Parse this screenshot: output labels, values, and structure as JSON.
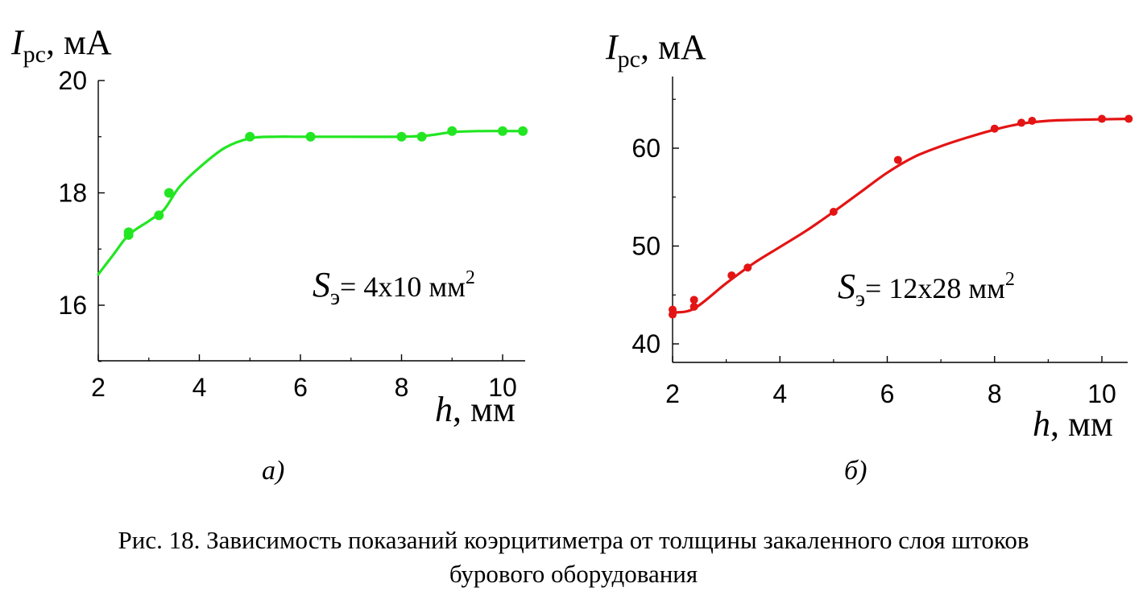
{
  "chart_data": [
    {
      "type": "line",
      "panel_label": "а)",
      "ylabel": {
        "var": "I",
        "sub": "рс",
        "unit": ", мА"
      },
      "xlabel": {
        "var": "h",
        "unit": ", мм"
      },
      "xlim": [
        2,
        10.5
      ],
      "ylim": [
        15,
        20
      ],
      "xticks": [
        "2",
        "4",
        "6",
        "8",
        "10"
      ],
      "yticks": [
        "16",
        "18",
        "20"
      ],
      "annotation": {
        "var": "S",
        "sub": "э",
        "text": "= 4х10 мм",
        "sup": "2"
      },
      "color": "#22e622",
      "series": [
        {
          "points": [
            [
              2.6,
              17.3
            ],
            [
              2.6,
              17.25
            ],
            [
              3.2,
              17.6
            ],
            [
              3.4,
              18.0
            ],
            [
              5.0,
              19.0
            ],
            [
              6.2,
              19.0
            ],
            [
              8.0,
              19.0
            ],
            [
              8.4,
              19.0
            ],
            [
              9.0,
              19.1
            ],
            [
              10.0,
              19.1
            ],
            [
              10.4,
              19.1
            ]
          ],
          "curve": [
            [
              2.0,
              16.55
            ],
            [
              2.3,
              16.9
            ],
            [
              2.6,
              17.25
            ],
            [
              3.0,
              17.5
            ],
            [
              3.3,
              17.7
            ],
            [
              3.6,
              18.1
            ],
            [
              4.0,
              18.45
            ],
            [
              4.5,
              18.8
            ],
            [
              5.0,
              18.97
            ],
            [
              5.5,
              19.0
            ],
            [
              6.0,
              19.0
            ],
            [
              7.0,
              19.0
            ],
            [
              8.0,
              19.0
            ],
            [
              8.5,
              19.02
            ],
            [
              9.0,
              19.08
            ],
            [
              9.5,
              19.1
            ],
            [
              10.4,
              19.1
            ]
          ]
        }
      ]
    },
    {
      "type": "line",
      "panel_label": "б)",
      "ylabel": {
        "var": "I",
        "sub": "рс",
        "unit": ", мА"
      },
      "xlabel": {
        "var": "h",
        "unit": ", мм"
      },
      "xlim": [
        2,
        10.5
      ],
      "ylim": [
        38,
        67
      ],
      "xticks": [
        "2",
        "4",
        "6",
        "8",
        "10"
      ],
      "yticks": [
        "40",
        "50",
        "60"
      ],
      "annotation": {
        "var": "S",
        "sub": "э",
        "text": "= 12х28 мм",
        "sup": "2"
      },
      "color": "#e41414",
      "series": [
        {
          "points": [
            [
              2.0,
              43.0
            ],
            [
              2.0,
              43.5
            ],
            [
              2.4,
              44.5
            ],
            [
              2.4,
              43.8
            ],
            [
              3.1,
              47.0
            ],
            [
              3.4,
              47.8
            ],
            [
              5.0,
              53.5
            ],
            [
              6.2,
              58.8
            ],
            [
              8.0,
              62.0
            ],
            [
              8.5,
              62.6
            ],
            [
              8.7,
              62.8
            ],
            [
              10.0,
              63.0
            ],
            [
              10.5,
              63.0
            ]
          ],
          "curve": [
            [
              2.0,
              43.2
            ],
            [
              2.4,
              43.6
            ],
            [
              3.0,
              46.2
            ],
            [
              3.5,
              48.2
            ],
            [
              4.0,
              49.9
            ],
            [
              4.5,
              51.6
            ],
            [
              5.0,
              53.5
            ],
            [
              5.5,
              55.5
            ],
            [
              6.0,
              57.5
            ],
            [
              6.5,
              59.1
            ],
            [
              7.0,
              60.2
            ],
            [
              7.5,
              61.1
            ],
            [
              8.0,
              61.9
            ],
            [
              8.5,
              62.5
            ],
            [
              9.0,
              62.8
            ],
            [
              9.5,
              62.9
            ],
            [
              10.5,
              63.0
            ]
          ]
        }
      ]
    }
  ],
  "caption_line1": "Рис. 18. Зависимость показаний коэрцитиметра от толщины закаленного слоя штоков",
  "caption_line2": "бурового оборудования"
}
